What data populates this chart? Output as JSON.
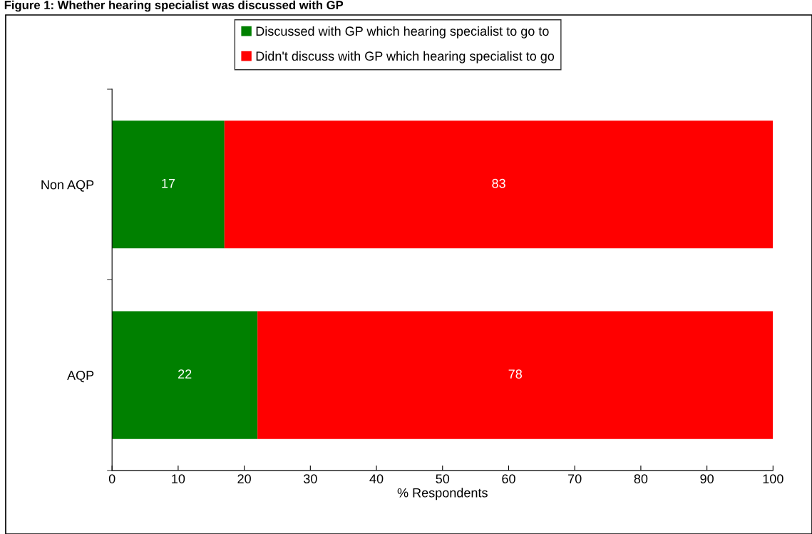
{
  "chart_data": {
    "type": "bar",
    "orientation": "horizontal",
    "stacked": true,
    "title": "Figure 1: Whether hearing specialist was discussed with GP",
    "xlabel": "% Respondents",
    "categories": [
      "Non AQP",
      "AQP"
    ],
    "series": [
      {
        "name": "Discussed with GP which hearing specialist to go to",
        "color": "#008000",
        "values": [
          17,
          22
        ]
      },
      {
        "name": "Didn't discuss with GP which hearing specialist to go",
        "color": "#ff0000",
        "values": [
          83,
          78
        ]
      }
    ],
    "xlim": [
      0,
      100
    ],
    "xticks": [
      0,
      10,
      20,
      30,
      40,
      50,
      60,
      70,
      80,
      90,
      100
    ],
    "data_labels": true,
    "grid": false,
    "legend": "top"
  }
}
